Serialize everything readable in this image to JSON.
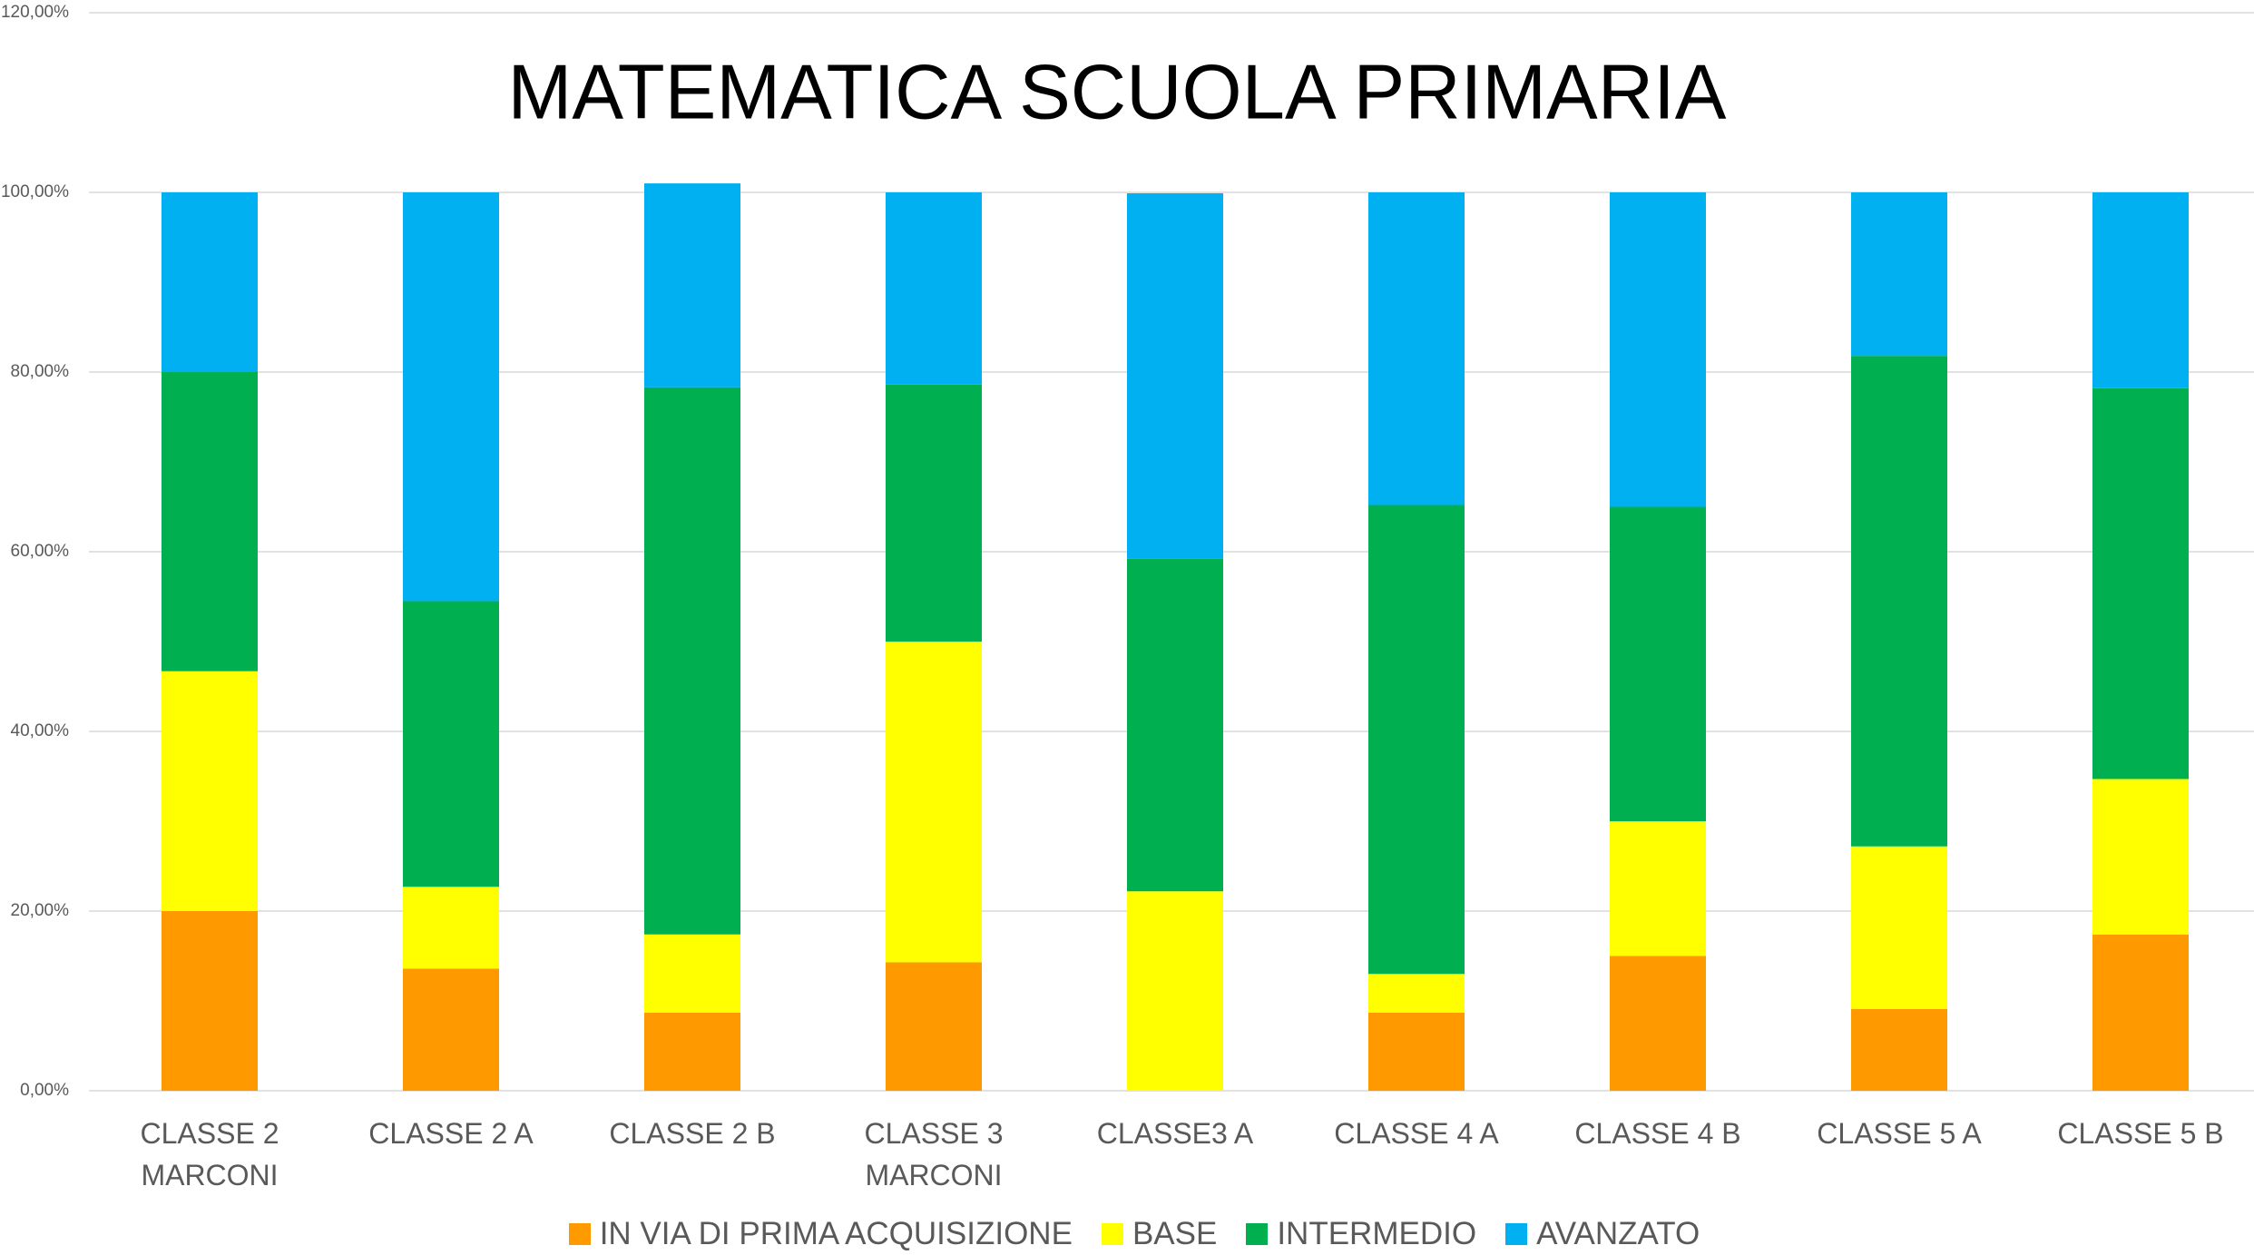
{
  "chart_data": {
    "type": "stacked_bar",
    "title": "MATEMATICA SCUOLA PRIMARIA",
    "categories": [
      "CLASSE 2 MARCONI",
      "CLASSE 2 A",
      "CLASSE 2 B",
      "CLASSE 3 MARCONI",
      "CLASSE3 A",
      "CLASSE 4 A",
      "CLASSE 4 B",
      "CLASSE 5 A",
      "CLASSE 5 B"
    ],
    "series": [
      {
        "name": "IN VIA DI PRIMA ACQUISIZIONE",
        "color": "#ff9900",
        "values": [
          20,
          13.6,
          8.7,
          14.3,
          0,
          8.7,
          15,
          9.1,
          17.4
        ]
      },
      {
        "name": "BASE",
        "color": "#ffff00",
        "values": [
          26.7,
          9.1,
          8.7,
          35.7,
          22.2,
          4.3,
          15,
          18.1,
          17.3
        ]
      },
      {
        "name": "INTERMEDIO",
        "color": "#00b050",
        "values": [
          33.3,
          31.8,
          60.9,
          28.6,
          37,
          52.2,
          35,
          54.6,
          43.5
        ]
      },
      {
        "name": "AVANZATO",
        "color": "#00b0f0",
        "values": [
          20,
          45.5,
          22.7,
          21.4,
          40.7,
          34.8,
          35,
          18.2,
          21.8
        ]
      }
    ],
    "ylim": [
      0,
      120
    ],
    "yticks": [
      {
        "value": 0,
        "label": "0,00%"
      },
      {
        "value": 20,
        "label": "20,00%"
      },
      {
        "value": 40,
        "label": "40,00%"
      },
      {
        "value": 60,
        "label": "60,00%"
      },
      {
        "value": 80,
        "label": "80,00%"
      },
      {
        "value": 100,
        "label": "100,00%"
      },
      {
        "value": 120,
        "label": "120,00%"
      }
    ],
    "grid": true,
    "legend": "bottom"
  }
}
